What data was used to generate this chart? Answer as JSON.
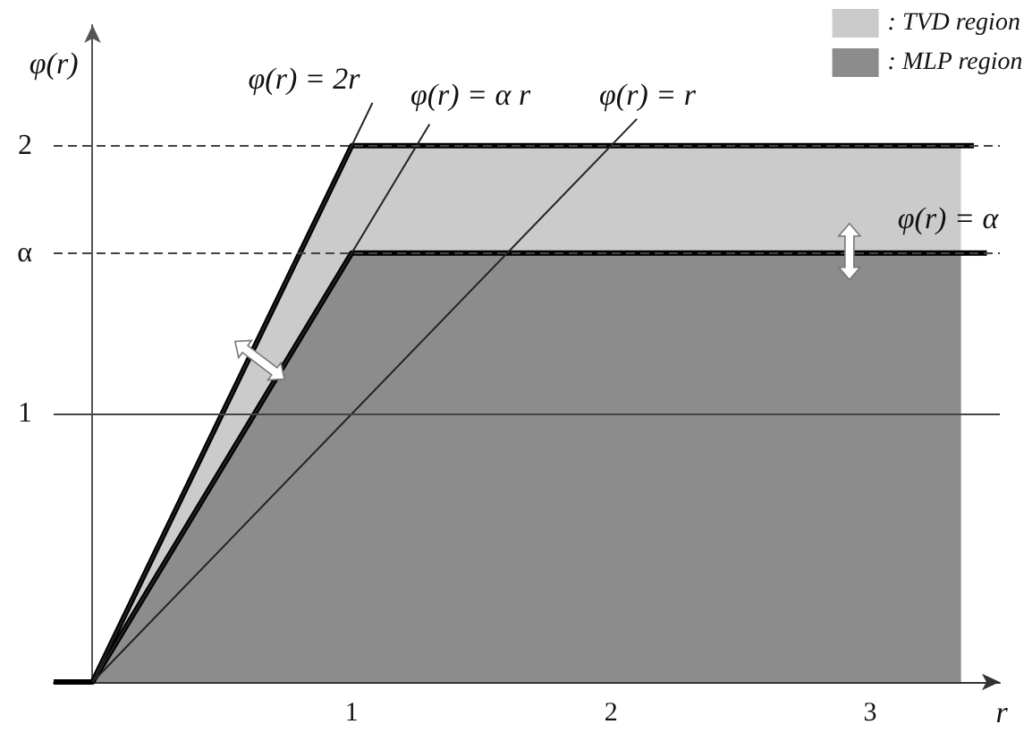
{
  "chart_data": {
    "type": "area",
    "xlabel": "r",
    "ylabel": "φ(r)",
    "xlim": [
      -0.15,
      3.5
    ],
    "xticks": [
      1,
      2,
      3
    ],
    "ylim": [
      0,
      2.45
    ],
    "yticks": [
      1,
      {
        "value": 1.6,
        "label": "α"
      },
      2
    ],
    "grid": false,
    "legend": "top right",
    "marker": "none",
    "series": [
      {
        "name": ": TVD region",
        "color": "#cbcbcb",
        "x": [
          0,
          1,
          3.35
        ],
        "values": [
          0,
          2,
          2
        ]
      },
      {
        "name": ": MLP region",
        "color": "#8c8c8c",
        "x": [
          0,
          1,
          3.35
        ],
        "values": [
          0,
          1.6,
          1.6
        ]
      },
      {
        "type": "line",
        "color": "#000000",
        "x": [
          -0.15,
          0,
          1,
          3.4
        ],
        "values": [
          0,
          0,
          2,
          2
        ]
      },
      {
        "type": "line",
        "color": "#000000",
        "x": [
          0,
          1,
          3.45
        ],
        "values": [
          0,
          1.6,
          1.6
        ]
      },
      {
        "type": "line",
        "color": "#222222",
        "x": [
          0,
          1.08
        ],
        "values": [
          0,
          2.16
        ]
      },
      {
        "type": "line",
        "color": "#222222",
        "x": [
          0,
          1.3
        ],
        "values": [
          0,
          2.08
        ]
      },
      {
        "type": "line",
        "color": "#222222",
        "x": [
          0,
          2.1
        ],
        "values": [
          0,
          2.1
        ]
      }
    ],
    "ref_lines": [
      {
        "axis": "y",
        "value": 1,
        "color": "#444444",
        "line_style": "solid"
      },
      {
        "axis": "y",
        "value": 2,
        "color": "#444444",
        "line_style": "dashed"
      },
      {
        "axis": "y",
        "value": 1.6,
        "color": "#444444",
        "line_style": "dashed"
      }
    ],
    "annotations": [
      "φ(r) = 2r",
      "φ(r) = α r",
      "φ(r) = r",
      "φ(r) = α"
    ]
  }
}
